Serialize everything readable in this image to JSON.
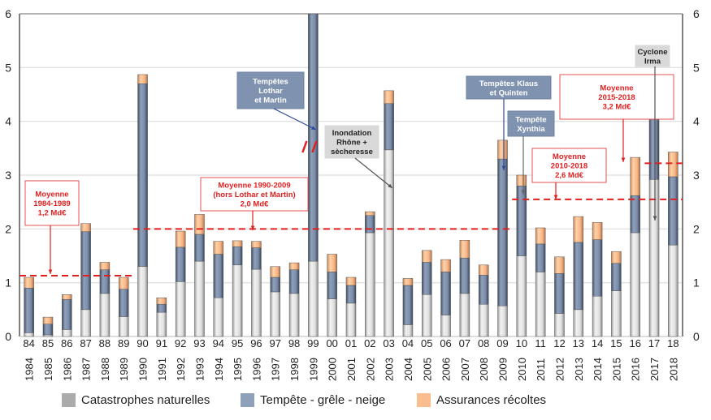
{
  "chart_data": {
    "type": "bar",
    "stacked": true,
    "title": "",
    "xlabel": "",
    "ylabel": "",
    "ylim": [
      0,
      6
    ],
    "yticks": [
      "0",
      "1",
      "2",
      "3",
      "4",
      "5",
      "6"
    ],
    "grid": true,
    "legend_position": "bottom",
    "categories": [
      "1984",
      "1985",
      "1986",
      "1987",
      "1988",
      "1989",
      "1990",
      "1991",
      "1992",
      "1993",
      "1994",
      "1995",
      "1996",
      "1997",
      "1998",
      "1999",
      "2000",
      "2001",
      "2002",
      "2003",
      "2004",
      "2005",
      "2006",
      "2007",
      "2008",
      "2009",
      "2010",
      "2011",
      "2012",
      "2013",
      "2014",
      "2015",
      "2016",
      "2017",
      "2018"
    ],
    "series": [
      {
        "name": "Catastrophes naturelles",
        "color": "#ababab",
        "values": [
          0.07,
          0.03,
          0.13,
          0.5,
          0.8,
          0.37,
          1.3,
          0.45,
          1.02,
          1.4,
          0.72,
          1.33,
          1.25,
          0.83,
          0.8,
          1.4,
          0.7,
          0.62,
          1.93,
          3.47,
          0.22,
          0.78,
          0.4,
          0.8,
          0.6,
          0.57,
          1.5,
          1.2,
          0.43,
          0.5,
          0.75,
          0.85,
          1.93,
          2.92,
          1.7
        ]
      },
      {
        "name": "Tempête - grêle - neige",
        "color": "#8ea0ba",
        "values": [
          0.83,
          0.2,
          0.56,
          1.45,
          0.44,
          0.51,
          3.4,
          0.15,
          0.64,
          0.5,
          0.81,
          0.34,
          0.4,
          0.27,
          0.44,
          4.6,
          0.5,
          0.33,
          0.32,
          0.86,
          0.73,
          0.6,
          0.8,
          0.66,
          0.54,
          2.73,
          1.3,
          0.52,
          0.74,
          1.25,
          1.05,
          0.51,
          0.69,
          1.2,
          1.27
        ]
      },
      {
        "name": "Assurances récoltes",
        "color": "#f9bd8f",
        "values": [
          0.2,
          0.13,
          0.09,
          0.15,
          0.14,
          0.22,
          0.17,
          0.12,
          0.3,
          0.37,
          0.24,
          0.11,
          0.12,
          0.2,
          0.13,
          0.0,
          0.33,
          0.15,
          0.07,
          0.24,
          0.13,
          0.22,
          0.23,
          0.33,
          0.19,
          0.35,
          0.2,
          0.3,
          0.31,
          0.48,
          0.32,
          0.22,
          0.71,
          0.42,
          0.46
        ]
      }
    ],
    "axis_break": {
      "category": "1999",
      "note": "bar truncated at 6"
    },
    "averages": [
      {
        "label_lines": [
          "Moyenne",
          "1984-1989",
          "1,2 Md€"
        ],
        "from": "1984",
        "to": "1989",
        "value": 1.13
      },
      {
        "label_lines": [
          "Moyenne 1990-2009",
          "(hors Lothar et Martin)",
          "2,0 Md€"
        ],
        "from": "1990",
        "to": "2009",
        "value": 2.0
      },
      {
        "label_lines": [
          "Moyenne",
          "2010-2018",
          "2,6 Md€"
        ],
        "from": "2010",
        "to": "2018",
        "value": 2.55
      },
      {
        "label_lines": [
          "Moyenne",
          "2015-2018",
          "3,2 Md€"
        ],
        "from": "2015",
        "to": "2018",
        "value": 3.22
      }
    ],
    "annotations": [
      {
        "label_lines": [
          "Tempêtes",
          "Lothar",
          "et Martin"
        ],
        "target": "1999",
        "style": "blue"
      },
      {
        "label_lines": [
          "Inondation",
          "Rhône +",
          "sècheresse"
        ],
        "target": "2003",
        "style": "gray"
      },
      {
        "label_lines": [
          "Tempêtes Klaus",
          "et Quinten"
        ],
        "target": "2009",
        "style": "blue"
      },
      {
        "label_lines": [
          "Tempête",
          "Xynthia"
        ],
        "target": "2010",
        "style": "blue"
      },
      {
        "label_lines": [
          "Cyclone",
          "Irma"
        ],
        "target": "2017",
        "style": "gray"
      }
    ]
  },
  "legend": [
    {
      "label": "Catastrophes naturelles",
      "color": "#ababab"
    },
    {
      "label": "Tempête - grêle - neige",
      "color": "#8ea0ba"
    },
    {
      "label": "Assurances récoltes",
      "color": "#f9bd8f"
    }
  ]
}
